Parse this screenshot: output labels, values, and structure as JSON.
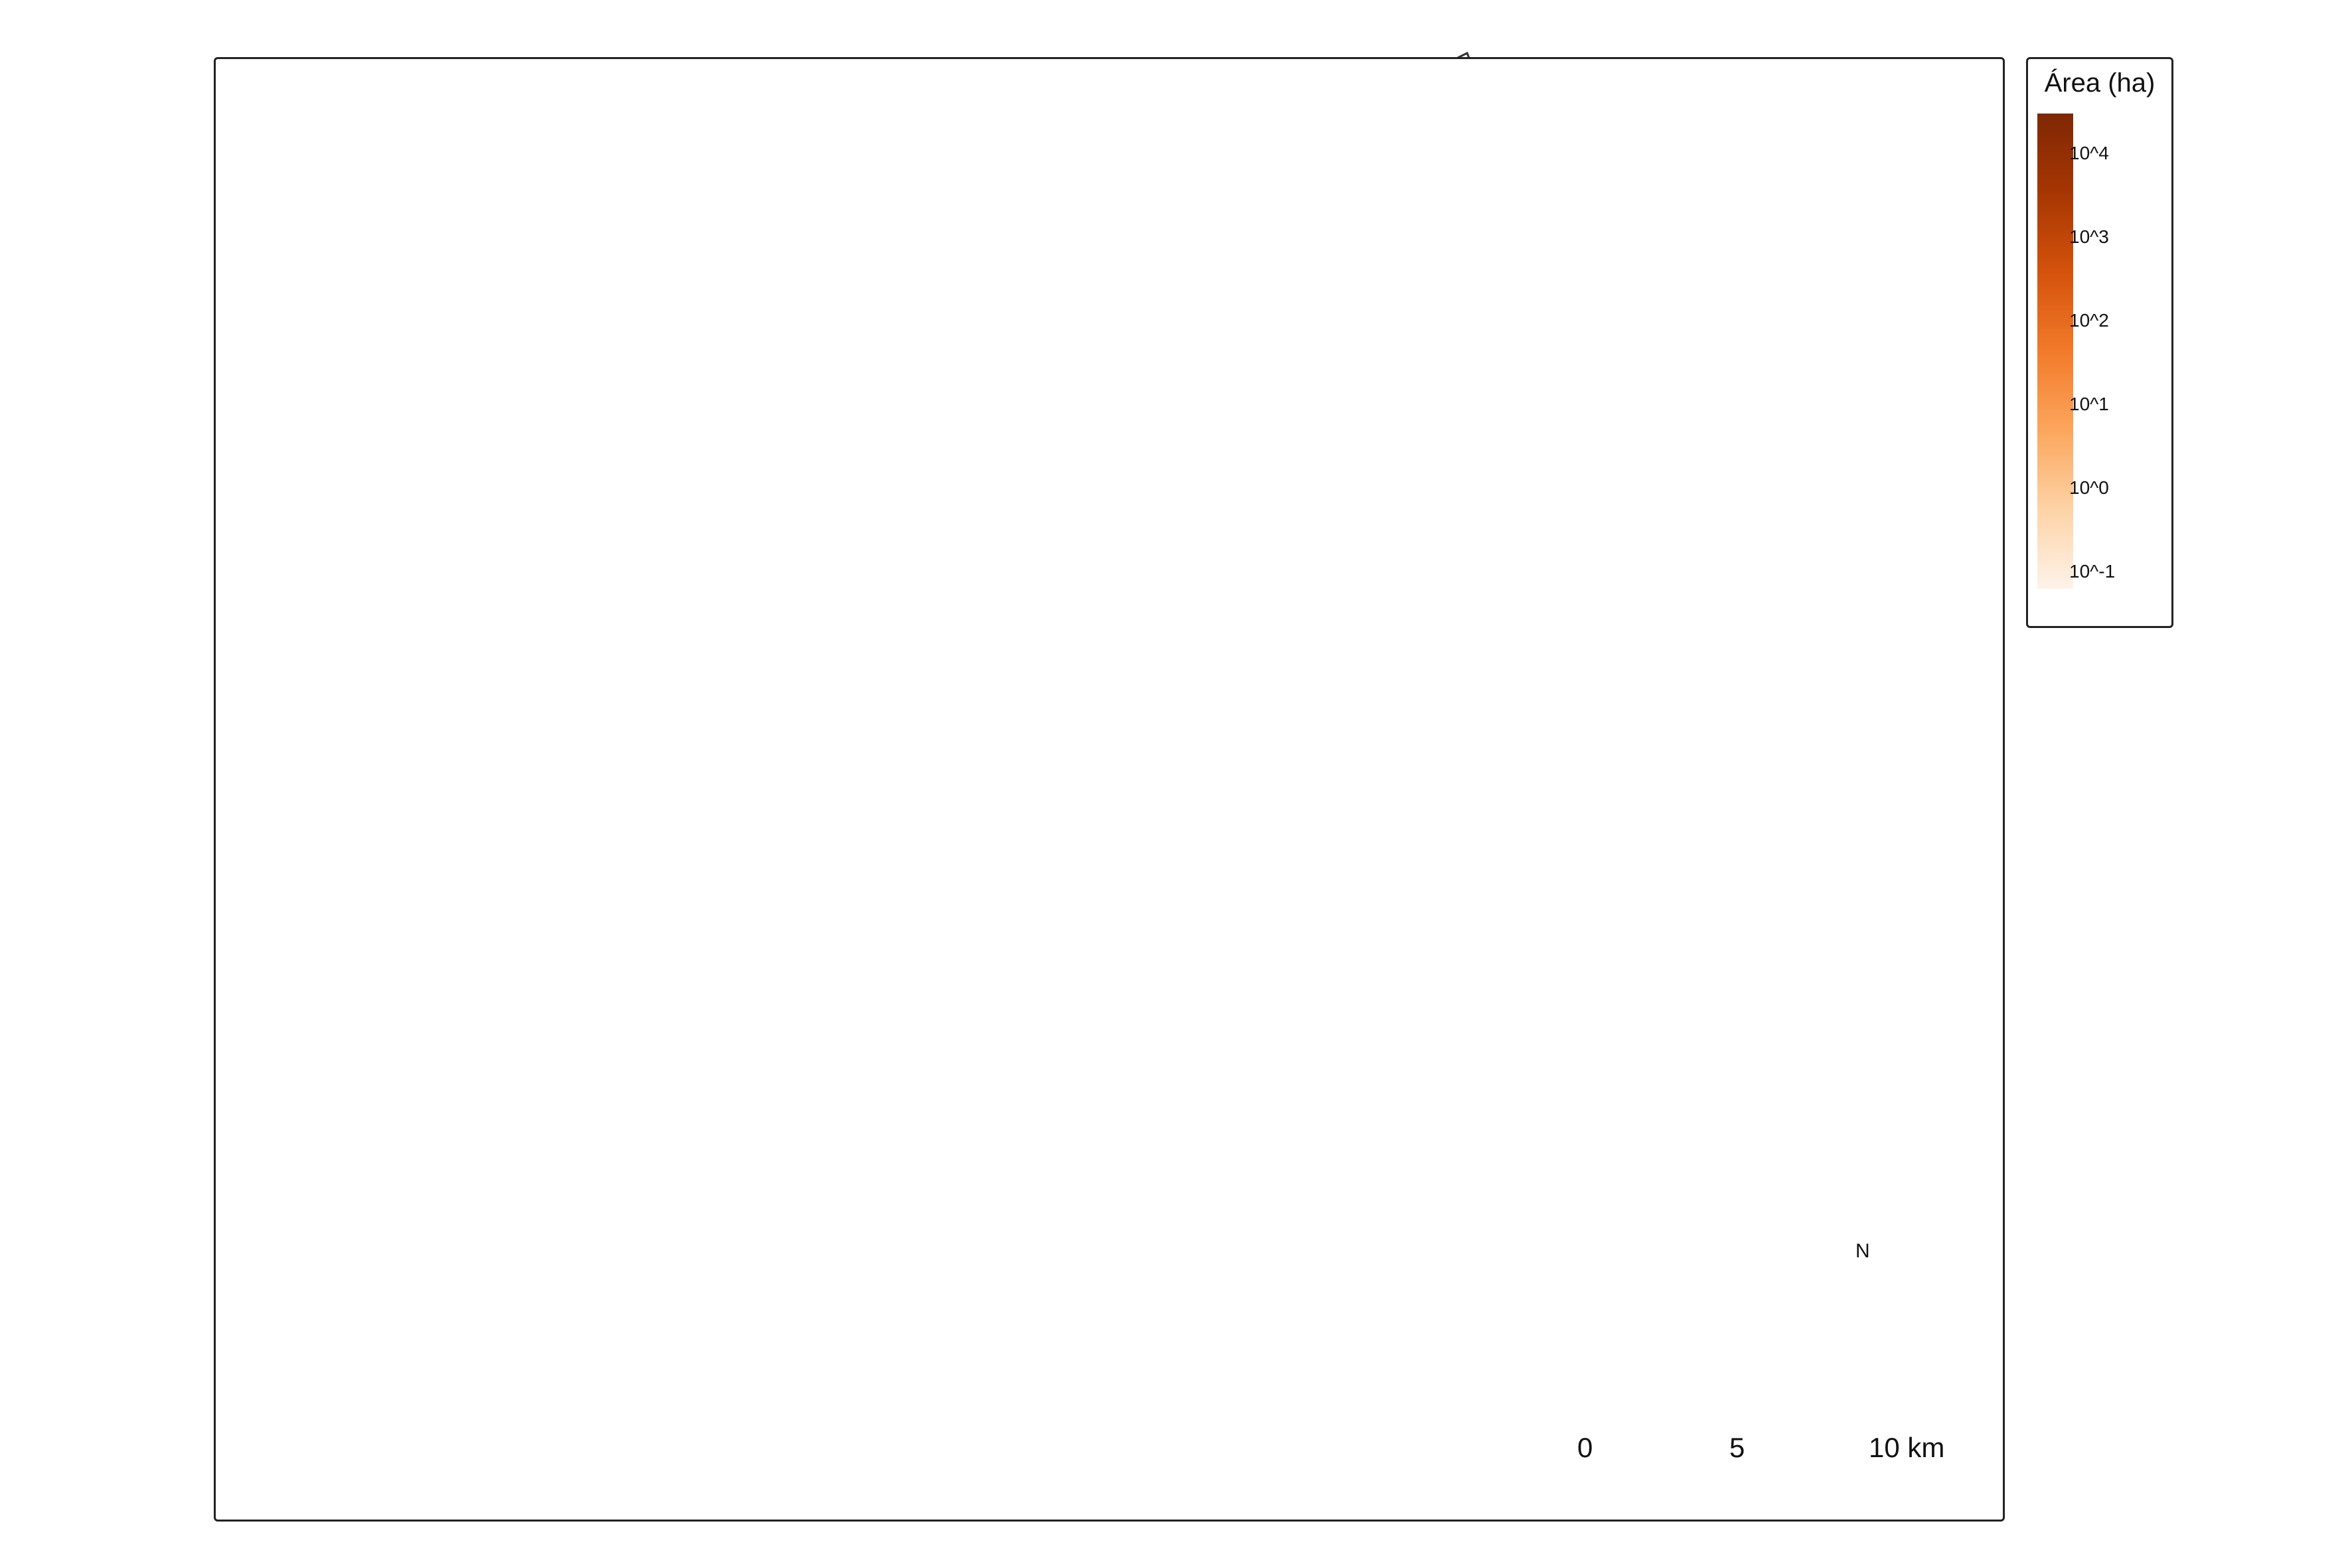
{
  "legend": {
    "title": "Área (ha)",
    "ticks": [
      "10^4",
      "10^3",
      "10^2",
      "10^1",
      "10^0",
      "10^-1"
    ],
    "colors": [
      "#fef3ea",
      "#fdd3a6",
      "#fca65d",
      "#f27a2a",
      "#d4520c",
      "#a63603",
      "#7f2704"
    ]
  },
  "scale_bar": {
    "labels": [
      "0",
      "5",
      "10 km"
    ]
  },
  "north_arrow": {
    "label": "N"
  },
  "map": {
    "boundary_color": "#333333",
    "fill_colors": {
      "dominant": "#7f2704",
      "large": "#c1440e",
      "medium": "#e8681a",
      "small": "#f59a4a",
      "tiny": "#fcc38e"
    }
  }
}
